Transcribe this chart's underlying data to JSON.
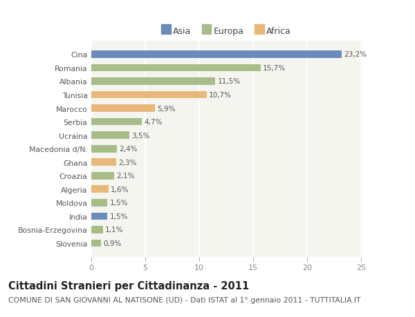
{
  "countries": [
    "Slovenia",
    "Bosnia-Erzegovina",
    "India",
    "Moldova",
    "Algeria",
    "Croazia",
    "Ghana",
    "Macedonia d/N.",
    "Ucraina",
    "Serbia",
    "Marocco",
    "Tunisia",
    "Albania",
    "Romania",
    "Cina"
  ],
  "values": [
    0.9,
    1.1,
    1.5,
    1.5,
    1.6,
    2.1,
    2.3,
    2.4,
    3.5,
    4.7,
    5.9,
    10.7,
    11.5,
    15.7,
    23.2
  ],
  "labels": [
    "0,9%",
    "1,1%",
    "1,5%",
    "1,5%",
    "1,6%",
    "2,1%",
    "2,3%",
    "2,4%",
    "3,5%",
    "4,7%",
    "5,9%",
    "10,7%",
    "11,5%",
    "15,7%",
    "23,2%"
  ],
  "continents": [
    "Europa",
    "Europa",
    "Asia",
    "Europa",
    "Africa",
    "Europa",
    "Africa",
    "Europa",
    "Europa",
    "Europa",
    "Africa",
    "Africa",
    "Europa",
    "Europa",
    "Asia"
  ],
  "colors": {
    "Asia": "#6b8cba",
    "Europa": "#a8bc8a",
    "Africa": "#e8b87a"
  },
  "xlim": [
    0,
    25
  ],
  "xticks": [
    0,
    5,
    10,
    15,
    20,
    25
  ],
  "title": "Cittadini Stranieri per Cittadinanza - 2011",
  "subtitle": "COMUNE DI SAN GIOVANNI AL NATISONE (UD) - Dati ISTAT al 1° gennaio 2011 - TUTTITALIA.IT",
  "background_color": "#ffffff",
  "chart_bg_color": "#f5f5f0",
  "bar_height": 0.55,
  "label_fontsize": 7.5,
  "tick_fontsize": 8.0,
  "ytick_fontsize": 7.8,
  "title_fontsize": 10.5,
  "subtitle_fontsize": 7.8,
  "legend_fontsize": 9.0
}
